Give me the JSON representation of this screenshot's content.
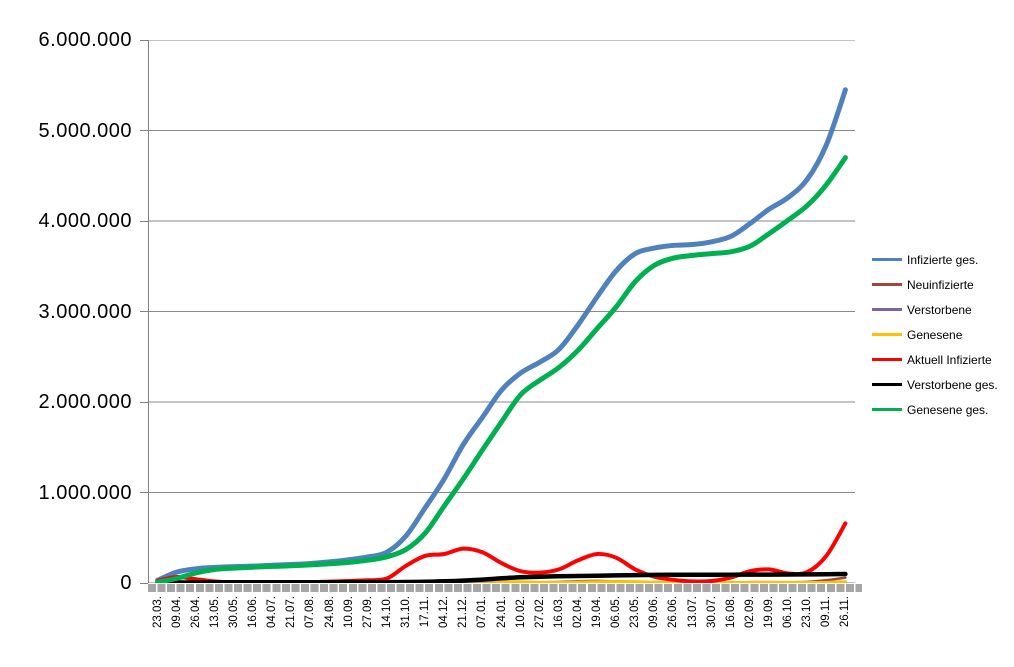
{
  "chart_data": {
    "type": "line",
    "title": "",
    "xlabel": "",
    "ylabel": "",
    "ylim": [
      0,
      6000000
    ],
    "grid": "horizontal",
    "legend_position": "right",
    "y_tick_labels": [
      "0",
      "1.000.000",
      "2.000.000",
      "3.000.000",
      "4.000.000",
      "5.000.000",
      "6.000.000"
    ],
    "x_tick_labels": [
      "23.03.",
      "09.04.",
      "26.04.",
      "13.05.",
      "30.05.",
      "16.06.",
      "04.07.",
      "21.07.",
      "07.08.",
      "24.08.",
      "10.09.",
      "27.09.",
      "14.10.",
      "31.10.",
      "17.11.",
      "04.12.",
      "21.12.",
      "07.01.",
      "24.01.",
      "10.02.",
      "27.02.",
      "16.03.",
      "02.04.",
      "19.04.",
      "06.05.",
      "23.05.",
      "09.06.",
      "26.06.",
      "13.07.",
      "30.07.",
      "16.08.",
      "02.09.",
      "19.09.",
      "06.10.",
      "23.10.",
      "09.11.",
      "26.11."
    ],
    "series": [
      {
        "name": "Infizierte ges.",
        "color": "#4F81BD",
        "line_width": 5,
        "values": [
          30000,
          120000,
          157000,
          172000,
          181000,
          187000,
          196000,
          204000,
          215000,
          233000,
          257000,
          287000,
          340000,
          520000,
          830000,
          1150000,
          1530000,
          1830000,
          2130000,
          2320000,
          2440000,
          2580000,
          2850000,
          3160000,
          3450000,
          3640000,
          3700000,
          3730000,
          3740000,
          3770000,
          3830000,
          3970000,
          4130000,
          4260000,
          4460000,
          4840000,
          5450000
        ]
      },
      {
        "name": "Neuinfizierte",
        "color": "#9E4742",
        "line_width": 2.5,
        "values": [
          3000,
          5000,
          2000,
          1000,
          600,
          400,
          400,
          500,
          900,
          1400,
          1800,
          2400,
          5500,
          15000,
          19500,
          19000,
          25000,
          20000,
          14000,
          9000,
          8000,
          12000,
          20000,
          23000,
          18000,
          9000,
          3500,
          1500,
          1000,
          1500,
          5000,
          10000,
          9500,
          7500,
          12000,
          30000,
          60000
        ]
      },
      {
        "name": "Verstorbene",
        "color": "#8064A2",
        "line_width": 2.5,
        "values": [
          100,
          250,
          200,
          120,
          60,
          30,
          20,
          15,
          15,
          20,
          25,
          40,
          60,
          120,
          250,
          400,
          600,
          700,
          600,
          450,
          300,
          200,
          180,
          220,
          250,
          180,
          100,
          60,
          40,
          30,
          25,
          40,
          60,
          65,
          70,
          120,
          250
        ]
      },
      {
        "name": "Genesene",
        "color": "#FFC000",
        "line_width": 3,
        "values": [
          2000,
          4500,
          3000,
          2500,
          1500,
          800,
          600,
          600,
          800,
          1000,
          1400,
          1800,
          2500,
          5000,
          11000,
          17000,
          20000,
          19000,
          17000,
          13000,
          8500,
          7000,
          9500,
          14000,
          17000,
          15000,
          9000,
          4000,
          2000,
          1200,
          1800,
          5000,
          7500,
          6500,
          5000,
          7000,
          14000
        ]
      },
      {
        "name": "Aktuell Infizierte",
        "color": "#FF0000",
        "line_width": 4,
        "values": [
          25000,
          66000,
          42000,
          17000,
          9000,
          6000,
          6000,
          7000,
          10000,
          16000,
          22000,
          30000,
          50000,
          190000,
          300000,
          320000,
          380000,
          340000,
          220000,
          130000,
          115000,
          150000,
          250000,
          320000,
          280000,
          150000,
          70000,
          35000,
          18000,
          22000,
          60000,
          130000,
          150000,
          105000,
          120000,
          300000,
          660000
        ]
      },
      {
        "name": "Verstorbene ges.",
        "color": "#000000",
        "line_width": 4.5,
        "values": [
          0,
          2000,
          5800,
          7900,
          8500,
          8800,
          9000,
          9100,
          9200,
          9300,
          9400,
          9500,
          9700,
          10500,
          13000,
          18500,
          27000,
          38000,
          52000,
          63000,
          70000,
          74000,
          77000,
          80500,
          84000,
          87000,
          89500,
          90500,
          91200,
          91700,
          92000,
          92500,
          93000,
          94000,
          95500,
          97500,
          100000
        ]
      },
      {
        "name": "Genesene ges.",
        "color": "#00B050",
        "line_width": 5,
        "values": [
          10000,
          50000,
          110000,
          150000,
          165000,
          175000,
          183000,
          190000,
          200000,
          212000,
          228000,
          252000,
          290000,
          370000,
          550000,
          850000,
          1150000,
          1470000,
          1780000,
          2080000,
          2240000,
          2380000,
          2570000,
          2810000,
          3050000,
          3330000,
          3510000,
          3590000,
          3620000,
          3640000,
          3660000,
          3720000,
          3860000,
          4010000,
          4170000,
          4400000,
          4700000
        ]
      }
    ],
    "colors": {
      "gridline": "#8a8a8a",
      "axis": "#808080",
      "tick_band": "#a6a6a6",
      "background": "#ffffff",
      "text": "#000000"
    }
  }
}
